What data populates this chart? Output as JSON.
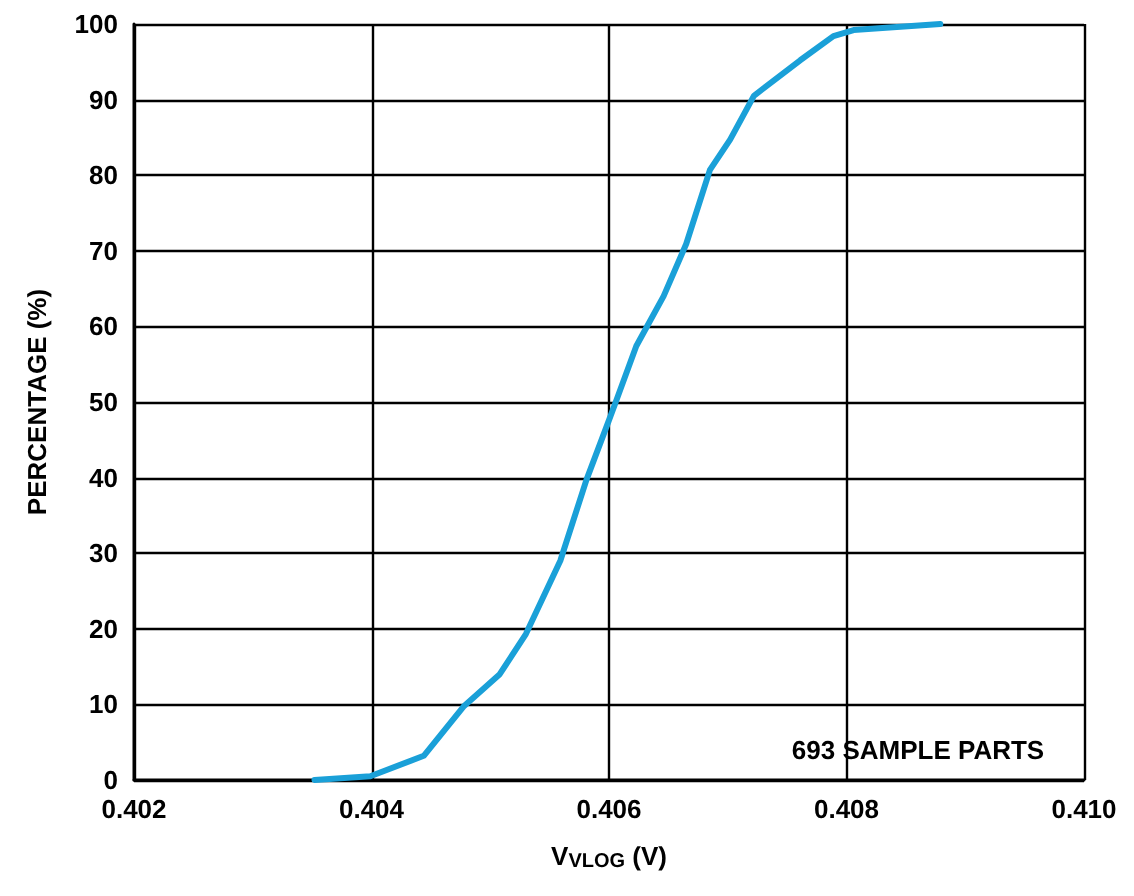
{
  "chart_data": {
    "type": "line",
    "xlabel": "V$_{VLOG}$ (V)",
    "ylabel": "PERCENTAGE (%)",
    "x": [
      0.40352,
      0.40399,
      0.40444,
      0.40478,
      0.40508,
      0.4053,
      0.40559,
      0.40581,
      0.406,
      0.40605,
      0.40623,
      0.40646,
      0.40665,
      0.40685,
      0.40702,
      0.40722,
      0.40761,
      0.40789,
      0.40806,
      0.40879
    ],
    "series": [
      {
        "color": "#1aa0d8",
        "values": [
          0,
          0.5,
          3.2,
          9.8,
          14,
          19.3,
          29,
          39.7,
          47.6,
          49.7,
          57.4,
          64,
          70.9,
          80.7,
          84.7,
          90.5,
          95.2,
          98.4,
          99.2,
          100
        ]
      }
    ],
    "xlim": [
      0.402,
      0.41
    ],
    "xticks": [
      0.402,
      0.404,
      0.406,
      0.408,
      {
        "value": 0.41,
        "label": "0.410"
      }
    ],
    "ylim": [
      0,
      100
    ],
    "yticks": [
      0,
      10,
      20,
      30,
      40,
      50,
      60,
      70,
      80,
      90,
      100
    ],
    "grid": true,
    "marker": "none",
    "line_style": "solid",
    "annotations": [
      "693 SAMPLE PARTS"
    ]
  }
}
